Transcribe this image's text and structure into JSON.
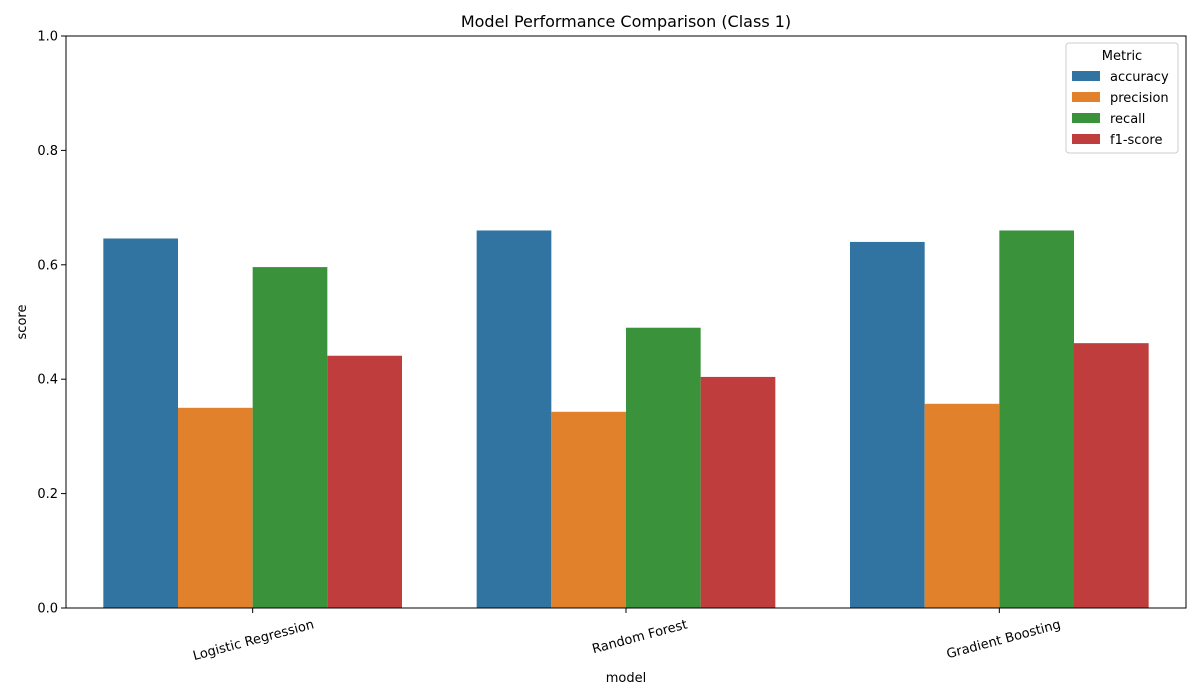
{
  "chart_data": {
    "type": "bar",
    "title": "Model Performance Comparison (Class 1)",
    "xlabel": "model",
    "ylabel": "score",
    "ylim": [
      0,
      1.0
    ],
    "yticks": [
      "0.0",
      "0.2",
      "0.4",
      "0.6",
      "0.8",
      "1.0"
    ],
    "categories": [
      "Logistic Regression",
      "Random Forest",
      "Gradient Boosting"
    ],
    "legend_title": "Metric",
    "legend_position": "top-right",
    "grid": false,
    "series": [
      {
        "name": "accuracy",
        "color": "#3274a1",
        "values": [
          0.646,
          0.66,
          0.64
        ]
      },
      {
        "name": "precision",
        "color": "#e1812c",
        "values": [
          0.35,
          0.343,
          0.357
        ]
      },
      {
        "name": "recall",
        "color": "#3a923a",
        "values": [
          0.596,
          0.49,
          0.66
        ]
      },
      {
        "name": "f1-score",
        "color": "#c03d3e",
        "values": [
          0.441,
          0.404,
          0.463
        ]
      }
    ]
  }
}
